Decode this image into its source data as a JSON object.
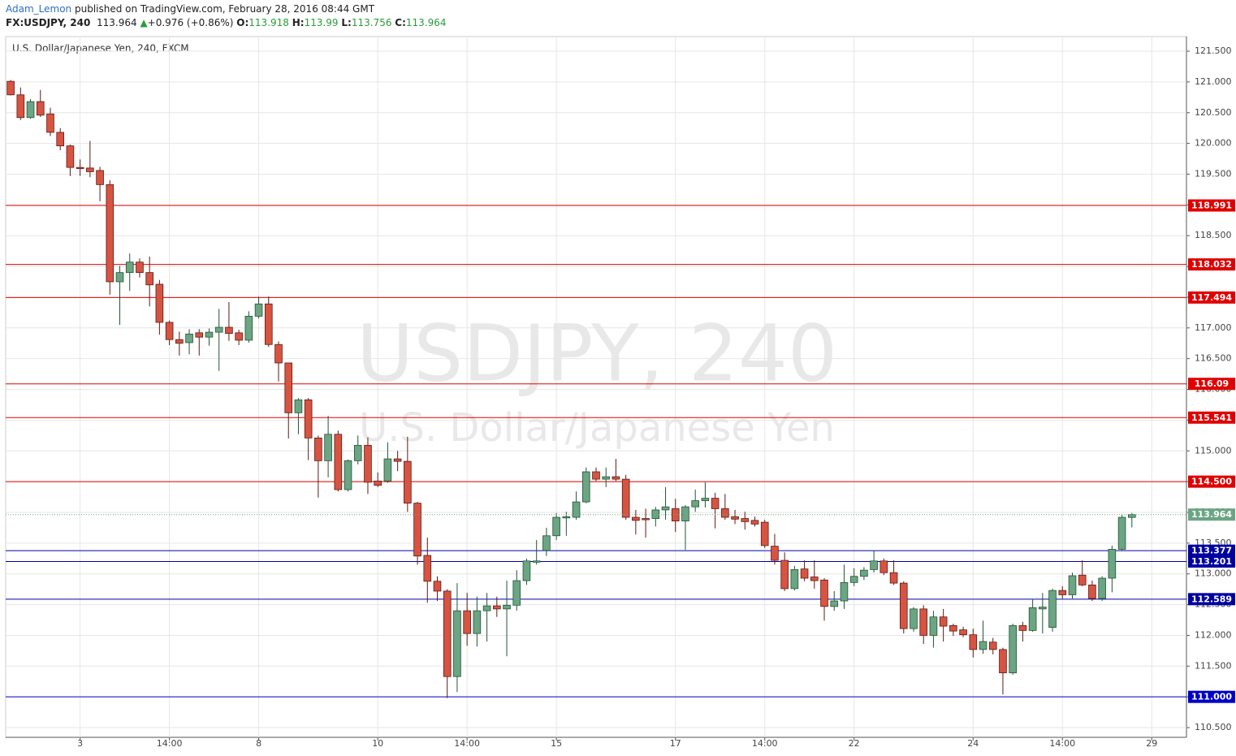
{
  "header": {
    "author": "Adam_Lemon",
    "published": "published on TradingView.com, February 28, 2016 08:44 GMT",
    "symbol": "FX:USDJPY, 240",
    "last": 113.964,
    "arrow": "▲",
    "change": "+0.976 (+0.86%)",
    "ohlc": [
      {
        "label": "O:",
        "value": 113.918
      },
      {
        "label": "H:",
        "value": 113.99
      },
      {
        "label": "L:",
        "value": 113.756
      },
      {
        "label": "C:",
        "value": 113.964
      }
    ]
  },
  "chart_data": {
    "type": "candlestick",
    "title": "U.S. Dollar/Japanese Yen, 240, FXCM",
    "watermark": [
      "USDJPY, 240",
      "U.S. Dollar/Japanese Yen"
    ],
    "up_color": "#6ba583",
    "up_border": "#225437",
    "down_color": "#d75442",
    "down_border": "#5b1a13",
    "categories": [
      null,
      null,
      null,
      null,
      null,
      null,
      null,
      "3",
      null,
      null,
      null,
      null,
      null,
      null,
      null,
      null,
      "14:00",
      null,
      null,
      null,
      null,
      null,
      null,
      null,
      null,
      "8",
      null,
      null,
      null,
      null,
      null,
      null,
      null,
      null,
      null,
      null,
      null,
      "10",
      null,
      null,
      null,
      null,
      null,
      null,
      null,
      null,
      "14:00",
      null,
      null,
      null,
      null,
      null,
      null,
      null,
      null,
      "15",
      null,
      null,
      null,
      null,
      null,
      null,
      null,
      null,
      null,
      null,
      null,
      "17",
      null,
      null,
      null,
      null,
      null,
      null,
      null,
      null,
      "14:00",
      null,
      null,
      null,
      null,
      null,
      null,
      null,
      null,
      "22",
      null,
      null,
      null,
      null,
      null,
      null,
      null,
      null,
      null,
      null,
      null,
      "24",
      null,
      null,
      null,
      null,
      null,
      null,
      null,
      null,
      "14:00",
      null,
      null,
      null,
      null,
      null,
      null,
      null,
      null,
      "29",
      null,
      null,
      null
    ],
    "open": [
      121.01,
      120.79,
      120.42,
      120.68,
      120.48,
      120.18,
      119.96,
      119.61,
      119.6,
      119.56,
      119.33,
      117.75,
      117.9,
      118.07,
      117.9,
      117.71,
      117.09,
      116.81,
      116.76,
      116.92,
      116.85,
      116.93,
      117.01,
      116.92,
      116.8,
      117.19,
      117.39,
      116.73,
      116.43,
      115.62,
      115.83,
      115.21,
      114.84,
      115.27,
      114.37,
      114.84,
      115.09,
      114.51,
      114.51,
      114.87,
      114.83,
      114.15,
      113.3,
      112.88,
      112.72,
      111.33,
      112.4,
      112.03,
      112.4,
      112.48,
      112.43,
      112.49,
      112.89,
      113.19,
      113.38,
      113.62,
      113.91,
      113.92,
      114.17,
      114.66,
      114.54,
      114.58,
      114.54,
      113.92,
      113.9,
      113.9,
      114.04,
      114.06,
      113.86,
      114.09,
      114.19,
      114.23,
      114.06,
      113.93,
      113.9,
      113.87,
      113.84,
      113.45,
      113.22,
      112.76,
      113.08,
      112.95,
      112.9,
      112.47,
      112.56,
      112.86,
      112.96,
      113.07,
      113.21,
      113.02,
      112.85,
      112.11,
      112.43,
      112.0,
      112.3,
      112.16,
      112.09,
      112.01,
      111.77,
      111.89,
      111.77,
      111.39,
      112.16,
      112.08,
      112.43,
      112.13,
      112.73,
      112.66,
      112.98,
      112.82,
      112.6,
      112.93,
      113.4,
      113.918,
      null,
      null,
      null,
      null,
      null
    ],
    "high": [
      121.03,
      120.91,
      120.72,
      120.87,
      120.58,
      120.25,
      119.98,
      119.74,
      120.04,
      119.62,
      119.4,
      118.01,
      118.21,
      118.13,
      118.16,
      117.78,
      117.12,
      116.94,
      116.98,
      116.98,
      116.99,
      117.31,
      117.42,
      116.97,
      117.27,
      117.51,
      117.51,
      116.78,
      116.43,
      115.86,
      115.86,
      115.25,
      115.57,
      115.33,
      114.86,
      115.25,
      115.22,
      114.65,
      115.14,
      115.0,
      115.23,
      114.17,
      113.59,
      112.96,
      112.75,
      112.85,
      112.69,
      112.63,
      112.69,
      112.63,
      112.89,
      113.06,
      113.25,
      113.55,
      113.75,
      113.99,
      114.01,
      114.34,
      114.73,
      114.73,
      114.73,
      114.87,
      114.61,
      114.04,
      114.06,
      114.09,
      114.41,
      114.22,
      114.12,
      114.37,
      114.49,
      114.32,
      114.3,
      114.04,
      114.01,
      113.93,
      113.88,
      113.65,
      113.35,
      113.13,
      113.22,
      113.22,
      112.93,
      112.72,
      113.15,
      113.09,
      113.11,
      113.38,
      113.25,
      113.22,
      112.88,
      112.46,
      112.49,
      112.4,
      112.43,
      112.19,
      112.14,
      112.11,
      112.24,
      111.96,
      111.8,
      112.19,
      112.22,
      112.59,
      112.69,
      112.76,
      112.8,
      113.02,
      113.22,
      112.89,
      112.96,
      113.46,
      113.97,
      113.99,
      null,
      null,
      null,
      null,
      null
    ],
    "low": [
      120.78,
      120.38,
      120.4,
      120.43,
      120.12,
      119.89,
      119.47,
      119.47,
      119.45,
      119.06,
      117.54,
      117.05,
      117.6,
      117.82,
      117.35,
      116.89,
      116.72,
      116.55,
      116.57,
      116.55,
      116.71,
      116.3,
      116.79,
      116.72,
      116.76,
      117.15,
      116.69,
      116.13,
      115.2,
      115.27,
      114.85,
      114.24,
      114.57,
      114.34,
      114.34,
      114.78,
      114.3,
      114.41,
      114.48,
      114.67,
      114.01,
      113.15,
      112.53,
      112.56,
      110.98,
      111.08,
      111.83,
      111.82,
      111.9,
      112.3,
      111.66,
      112.4,
      112.82,
      113.15,
      113.29,
      113.55,
      113.62,
      113.88,
      114.15,
      114.51,
      114.41,
      114.51,
      113.88,
      113.64,
      113.59,
      113.77,
      113.88,
      113.68,
      113.39,
      114.01,
      114.08,
      113.74,
      113.88,
      113.81,
      113.72,
      113.77,
      113.42,
      113.15,
      112.72,
      112.73,
      112.88,
      112.76,
      112.24,
      112.4,
      112.43,
      112.8,
      112.9,
      113.02,
      112.98,
      112.82,
      112.03,
      112.06,
      111.86,
      111.8,
      111.9,
      111.99,
      111.97,
      111.64,
      111.7,
      111.69,
      111.04,
      111.36,
      111.9,
      112.06,
      112.03,
      112.06,
      112.6,
      112.6,
      112.8,
      112.56,
      112.56,
      112.7,
      113.38,
      113.756,
      null,
      null,
      null,
      null,
      null
    ],
    "close": [
      120.79,
      120.42,
      120.68,
      120.46,
      120.18,
      119.96,
      119.61,
      119.59,
      119.54,
      119.33,
      117.75,
      117.9,
      118.07,
      117.9,
      117.7,
      117.09,
      116.81,
      116.75,
      116.9,
      116.85,
      116.93,
      117.01,
      116.91,
      116.8,
      117.19,
      117.39,
      116.73,
      116.43,
      115.62,
      115.83,
      115.21,
      114.84,
      115.27,
      114.37,
      114.84,
      115.09,
      114.49,
      114.44,
      114.87,
      114.83,
      114.15,
      113.29,
      112.88,
      112.72,
      111.33,
      112.4,
      112.03,
      112.4,
      112.48,
      112.43,
      112.49,
      112.89,
      113.21,
      113.21,
      113.62,
      113.92,
      113.93,
      114.17,
      114.66,
      114.54,
      114.58,
      114.54,
      113.92,
      113.87,
      113.88,
      114.04,
      114.09,
      113.86,
      114.09,
      114.19,
      114.23,
      114.06,
      113.92,
      113.89,
      113.85,
      113.81,
      113.46,
      113.22,
      112.76,
      113.07,
      112.93,
      112.89,
      112.47,
      112.56,
      112.86,
      112.96,
      113.06,
      113.21,
      113.02,
      112.85,
      112.11,
      112.43,
      112.0,
      112.3,
      112.15,
      112.07,
      112.01,
      111.77,
      111.9,
      111.77,
      111.39,
      112.16,
      112.08,
      112.45,
      112.46,
      112.73,
      112.66,
      112.97,
      112.82,
      112.6,
      112.93,
      113.4,
      113.92,
      113.964,
      null,
      null,
      null,
      null,
      null
    ],
    "ylim": [
      110.342,
      121.738
    ],
    "yticks": [
      {
        "value": 110.5,
        "label": "110.500"
      },
      {
        "value": 111,
        "label": "111.000"
      },
      {
        "value": 111.5,
        "label": "111.500"
      },
      {
        "value": 112,
        "label": "112.000"
      },
      {
        "value": 112.5,
        "label": "112.500"
      },
      {
        "value": 113,
        "label": "113.000"
      },
      {
        "value": 113.5,
        "label": "113.500"
      },
      {
        "value": 114,
        "label": "114.000"
      },
      {
        "value": 114.5,
        "label": "114.500"
      },
      {
        "value": 115,
        "label": "115.000"
      },
      {
        "value": 115.5,
        "label": "115.500"
      },
      {
        "value": 116,
        "label": "116.000"
      },
      {
        "value": 116.5,
        "label": "116.500"
      },
      {
        "value": 117,
        "label": "117.000"
      },
      {
        "value": 117.5,
        "label": "117.500"
      },
      {
        "value": 118,
        "label": "118.000"
      },
      {
        "value": 118.5,
        "label": "118.500"
      },
      {
        "value": 119,
        "label": "119.000"
      },
      {
        "value": 119.5,
        "label": "119.500"
      },
      {
        "value": 120,
        "label": "120.000"
      },
      {
        "value": 120.5,
        "label": "120.500"
      },
      {
        "value": 121,
        "label": "121.000"
      },
      {
        "value": 121.5,
        "label": "121.500"
      }
    ],
    "grid": true,
    "last_price": {
      "price": 113.964,
      "color": "#6ba583"
    },
    "levels": [
      {
        "price": 118.991,
        "color": "#e00000"
      },
      {
        "price": 118.032,
        "color": "#e00000"
      },
      {
        "price": 117.494,
        "color": "#e00000"
      },
      {
        "price": 116.09,
        "color": "#e00000"
      },
      {
        "price": 115.541,
        "color": "#e00000"
      },
      {
        "price": {
          "value": 114.5,
          "label": "114.500"
        },
        "color": "#e00000"
      },
      {
        "price": 113.377,
        "color": "#0000a0"
      },
      {
        "price": 113.201,
        "color": "#0000a0"
      },
      {
        "price": 112.589,
        "color": "#0000a0"
      },
      {
        "price": {
          "value": 111,
          "label": "111.000"
        },
        "color": "#0000c8"
      }
    ]
  }
}
